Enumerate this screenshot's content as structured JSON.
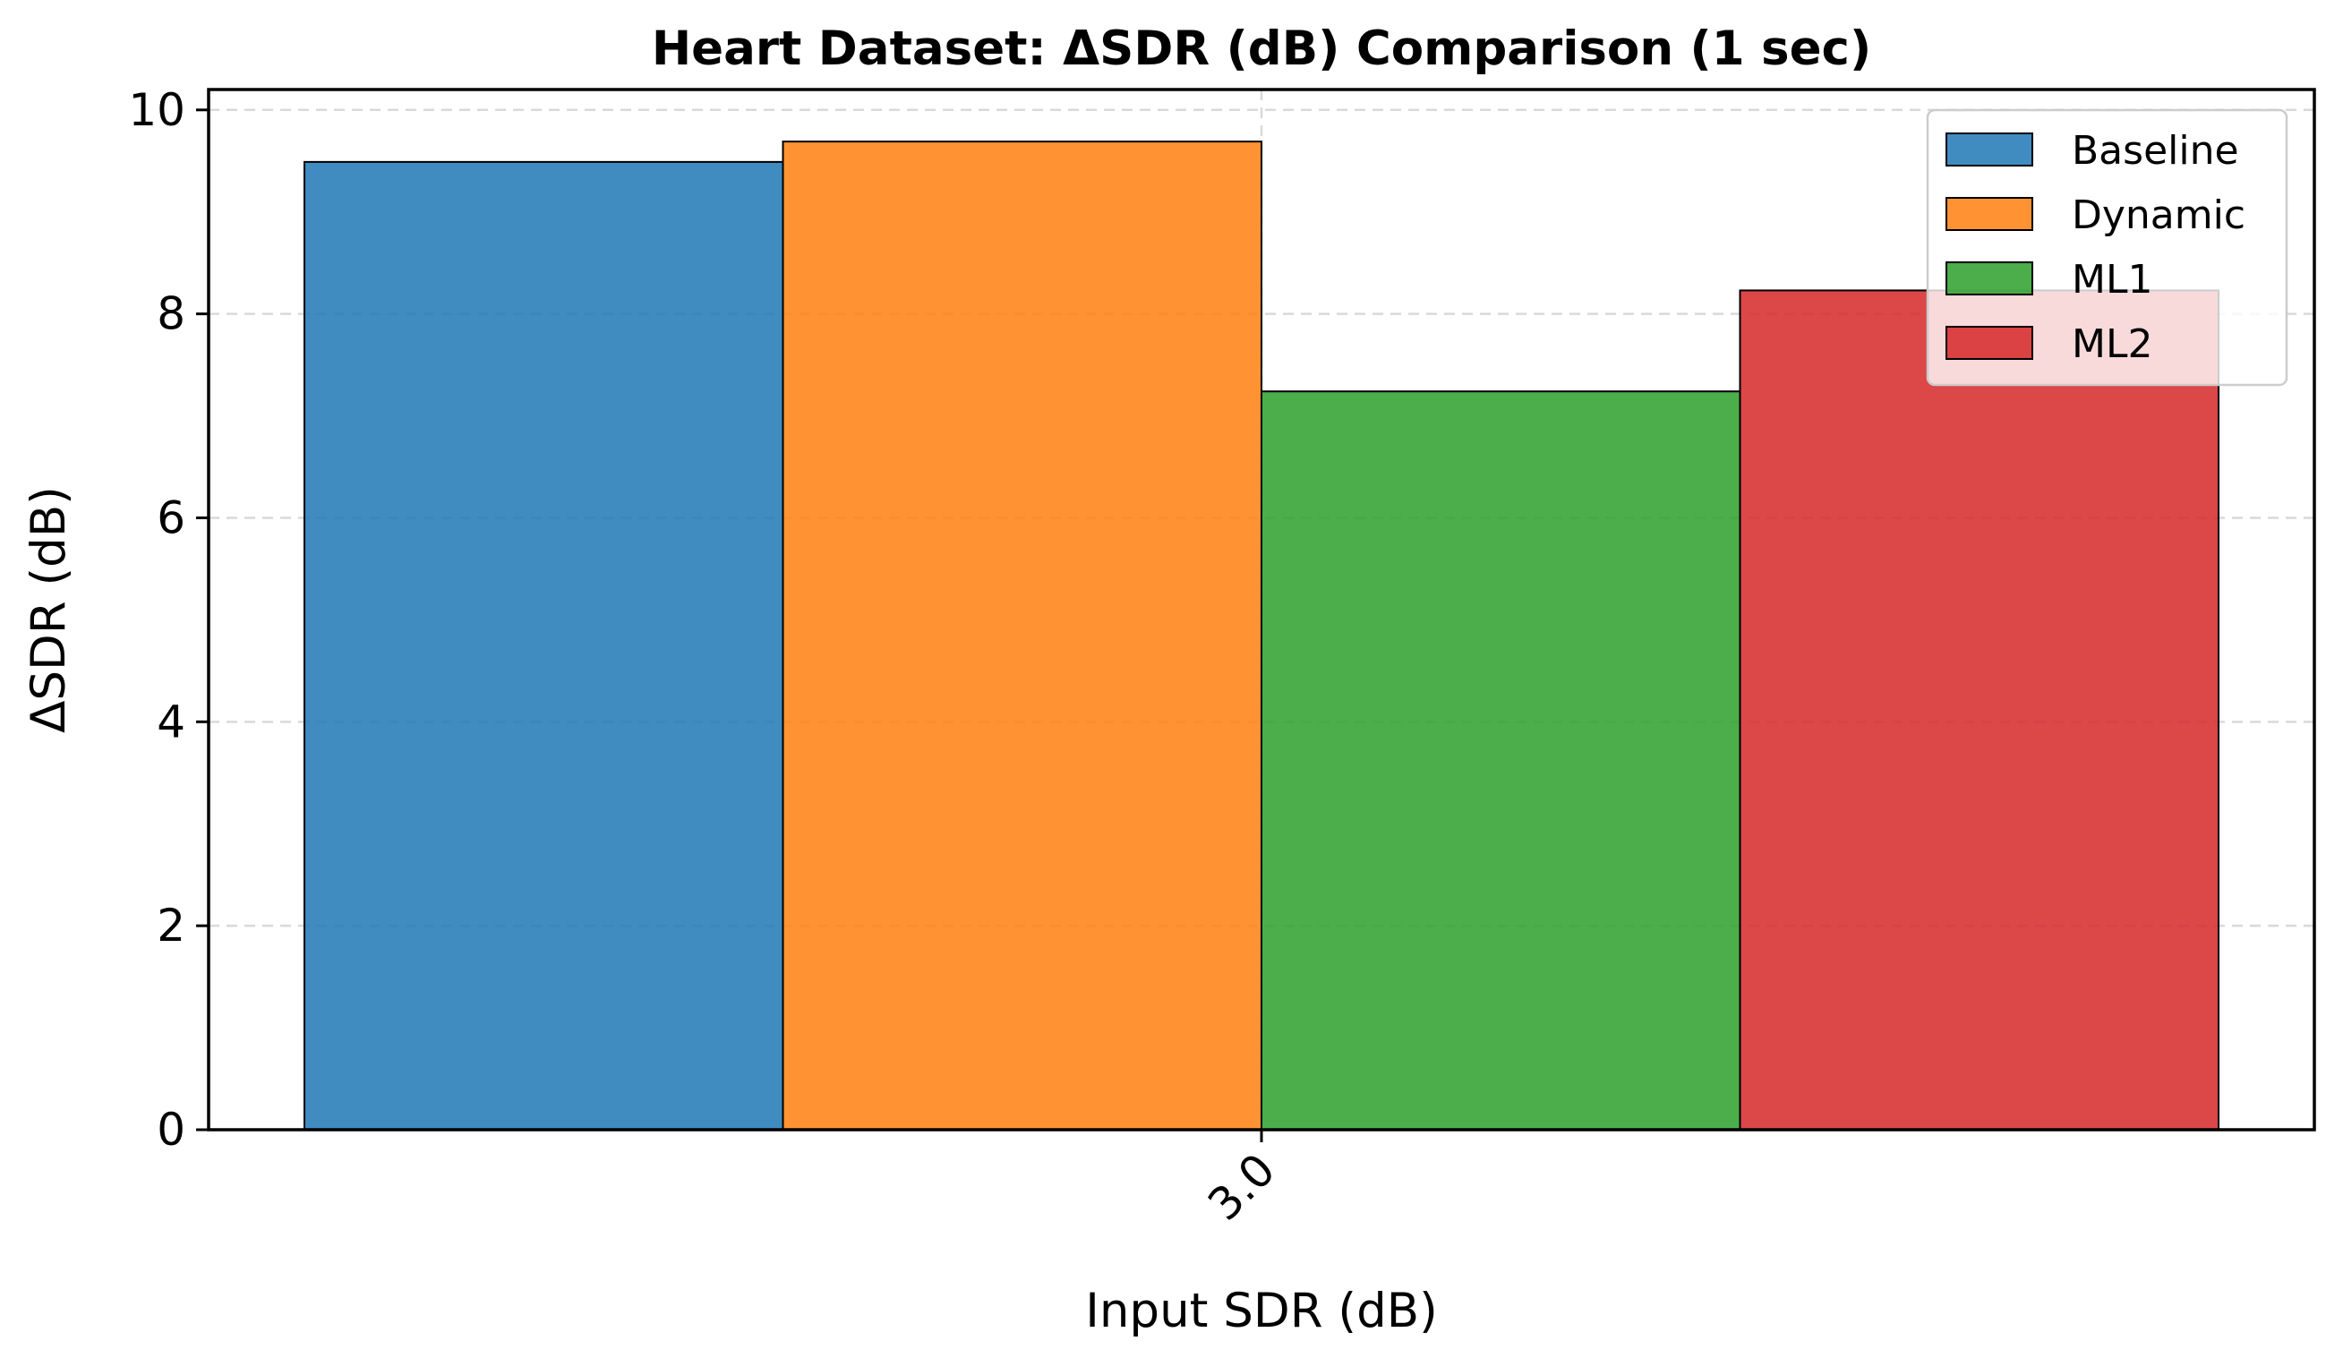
{
  "chart_data": {
    "type": "bar",
    "title": "Heart Dataset: ΔSDR (dB) Comparison (1 sec)",
    "xlabel": "Input SDR (dB)",
    "ylabel": "ΔSDR (dB)",
    "categories": [
      "3.0"
    ],
    "series": [
      {
        "name": "Baseline",
        "values": [
          9.49
        ],
        "color": "#1f77b4"
      },
      {
        "name": "Dynamic",
        "values": [
          9.69
        ],
        "color": "#ff7f0e"
      },
      {
        "name": "ML1",
        "values": [
          7.24
        ],
        "color": "#2ca02c"
      },
      {
        "name": "ML2",
        "values": [
          8.23
        ],
        "color": "#d62728"
      }
    ],
    "ylim": [
      0,
      10.2
    ],
    "yticks": [
      "0",
      "2",
      "4",
      "6",
      "8",
      "10"
    ],
    "grid": true,
    "legend_position": "top-right"
  }
}
